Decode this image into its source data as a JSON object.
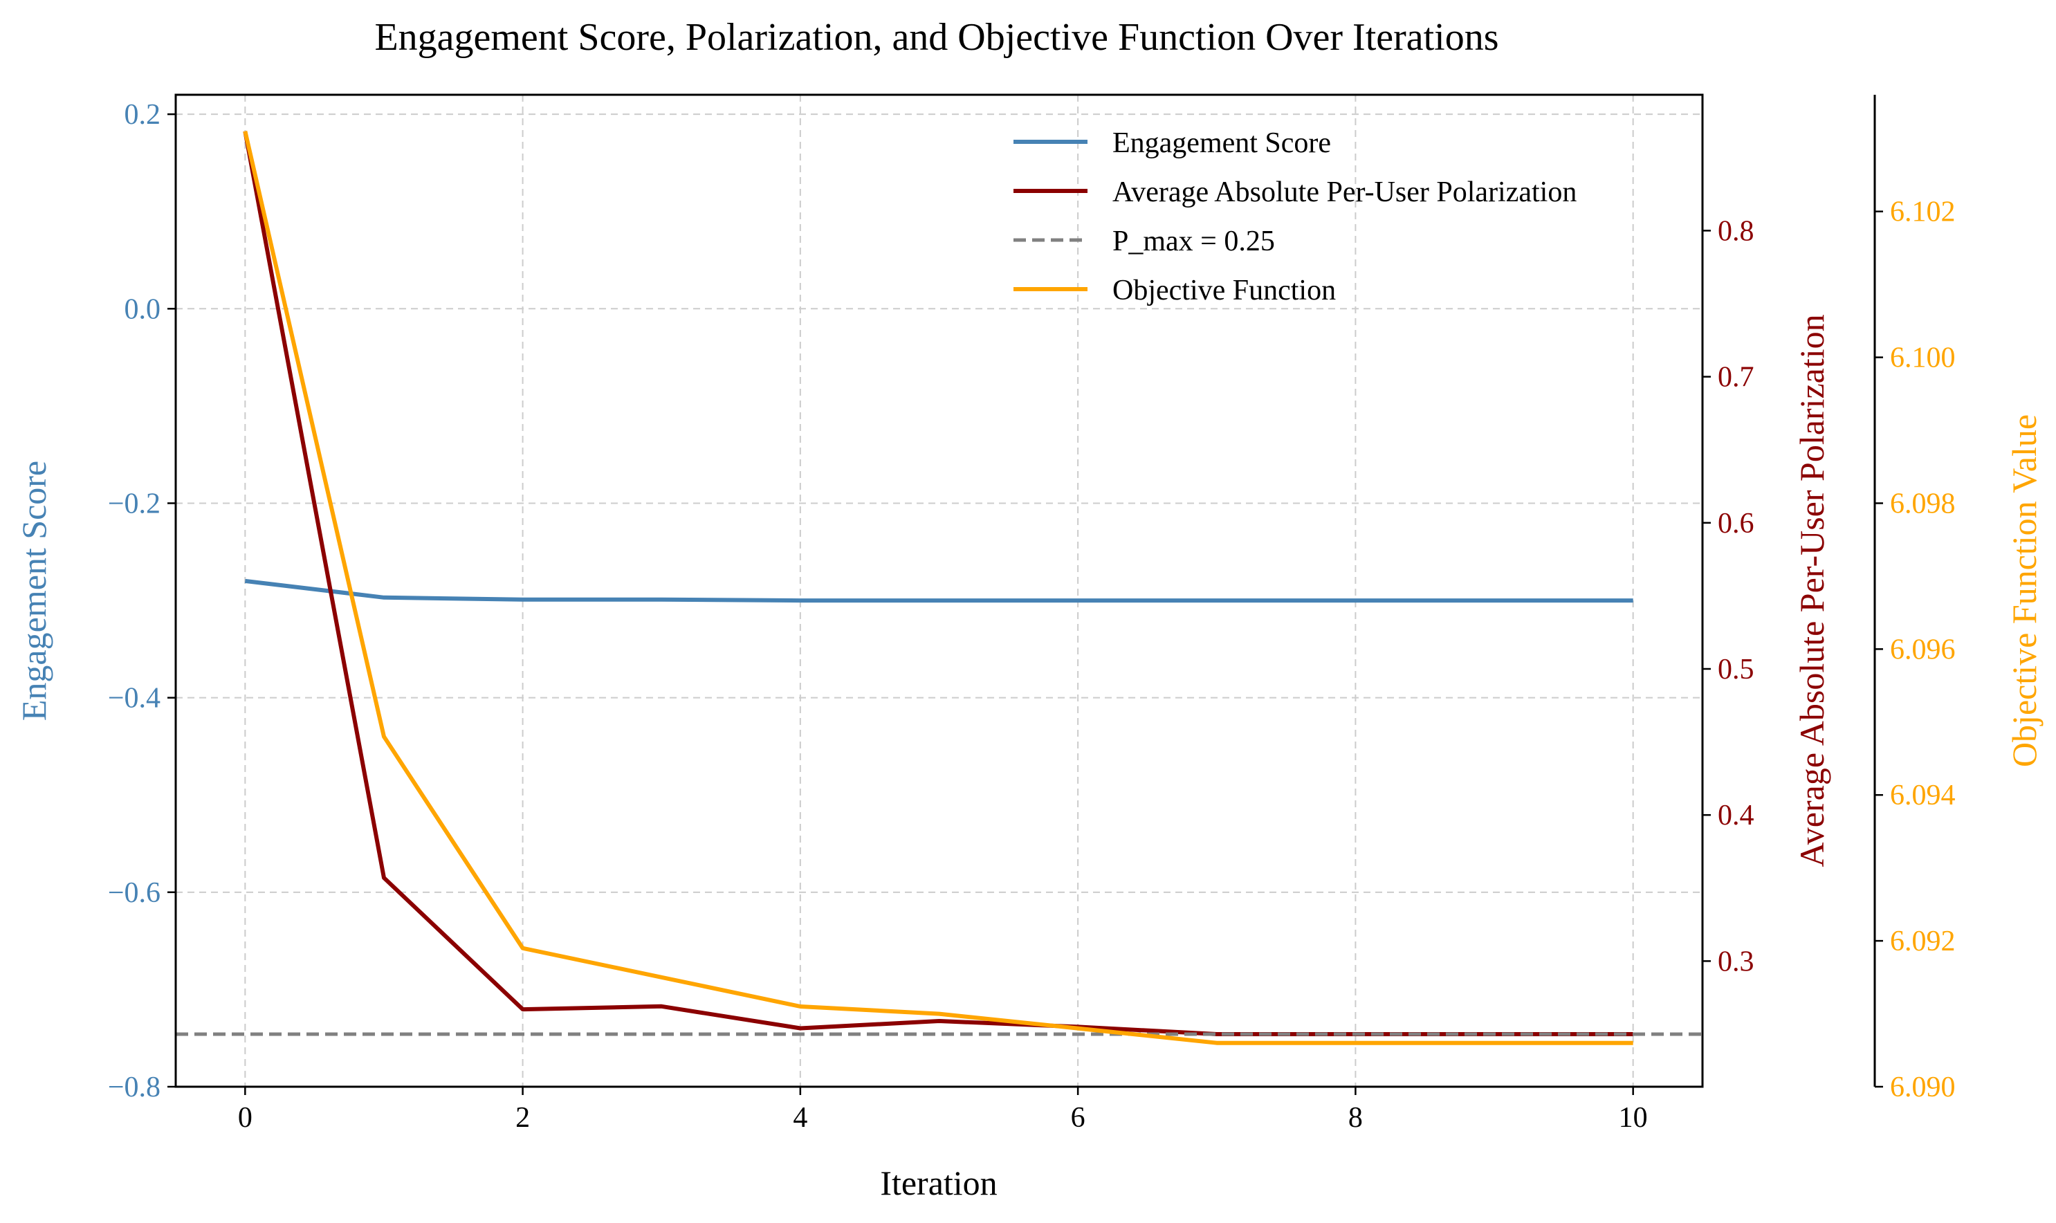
{
  "chart_data": {
    "type": "line",
    "title": "Engagement Score, Polarization, and Objective Function Over Iterations",
    "xlabel": "Iteration",
    "xlim": [
      -0.5,
      10.5
    ],
    "xticks": [
      0,
      2,
      4,
      6,
      8,
      10
    ],
    "grid": true,
    "legend_placement": "top-right",
    "axes": {
      "left": {
        "label": "Engagement Score",
        "color": "#4682b4",
        "ylim": [
          -0.8,
          0.22
        ],
        "ticks": [
          0.2,
          0.0,
          -0.2,
          -0.4,
          -0.6,
          -0.8
        ],
        "tick_labels": [
          "0.2",
          "0.0",
          "−0.2",
          "−0.4",
          "−0.6",
          "−0.8"
        ]
      },
      "right": {
        "label": "Average Absolute Per-User Polarization",
        "color": "#8b0000",
        "ylim": [
          0.214,
          0.893
        ],
        "ticks": [
          0.3,
          0.4,
          0.5,
          0.6,
          0.7,
          0.8
        ],
        "tick_labels": [
          "0.3",
          "0.4",
          "0.5",
          "0.6",
          "0.7",
          "0.8"
        ]
      },
      "right2": {
        "label": "Objective Function Value",
        "color": "#ffa500",
        "ylim": [
          6.09,
          6.1036
        ],
        "ticks": [
          6.09,
          6.092,
          6.094,
          6.096,
          6.098,
          6.1,
          6.102
        ],
        "tick_labels": [
          "6.090",
          "6.092",
          "6.094",
          "6.096",
          "6.098",
          "6.100",
          "6.102"
        ]
      }
    },
    "x": [
      0,
      1,
      2,
      3,
      4,
      5,
      6,
      7,
      8,
      9,
      10
    ],
    "series": [
      {
        "name": "Engagement Score",
        "axis": "left",
        "color": "#4682b4",
        "style": "solid",
        "values": [
          -0.28,
          -0.297,
          -0.299,
          -0.299,
          -0.3,
          -0.3,
          -0.3,
          -0.3,
          -0.3,
          -0.3,
          -0.3
        ]
      },
      {
        "name": "Average Absolute Per-User Polarization",
        "axis": "right",
        "color": "#8b0000",
        "style": "solid",
        "values": [
          0.868,
          0.357,
          0.267,
          0.269,
          0.254,
          0.259,
          0.255,
          0.25,
          0.25,
          0.25,
          0.25
        ]
      },
      {
        "name": "P_max = 0.25",
        "axis": "right",
        "color": "#808080",
        "style": "dashed",
        "hline": 0.25
      },
      {
        "name": "Objective Function",
        "axis": "right2",
        "color": "#ffa500",
        "style": "solid",
        "values": [
          6.1031,
          6.0948,
          6.0919,
          6.0915,
          6.0911,
          6.091,
          6.0908,
          6.0906,
          6.0906,
          6.0906,
          6.0906
        ]
      }
    ]
  }
}
